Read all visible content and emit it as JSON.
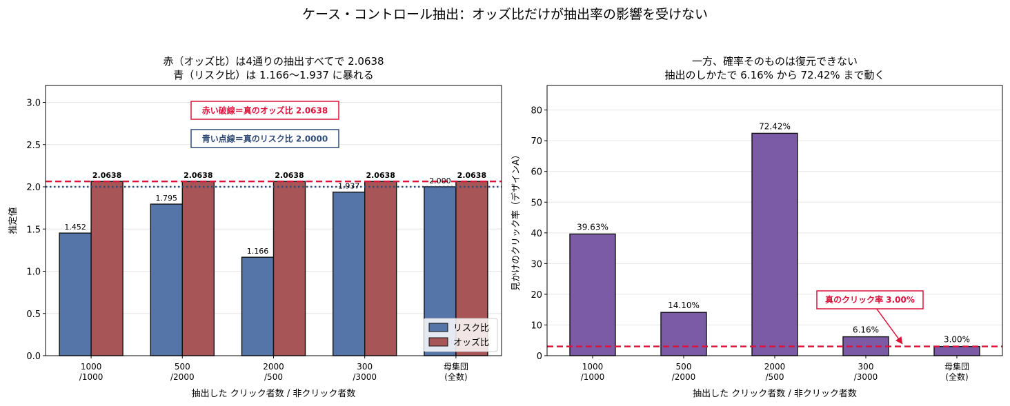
{
  "figure": {
    "suptitle": "ケース・コントロール抽出：オッズ比だけが抽出率の影響を受けない"
  },
  "colors": {
    "risk": "#5575a8",
    "odds": "#a85557",
    "purple": "#7b5aa6",
    "red_line": "#dc143c",
    "blue_line": "#2e4a75"
  },
  "chart_data": [
    {
      "type": "bar",
      "title_lines": [
        "赤（オッズ比）は4通りの抽出すべてで 2.0638",
        "青（リスク比）は 1.166〜1.937 に暴れる"
      ],
      "xlabel": "抽出した クリック者数 / 非クリック者数",
      "ylabel": "推定値",
      "categories": [
        [
          "1000",
          "/1000"
        ],
        [
          "500",
          "/2000"
        ],
        [
          "2000",
          "/500"
        ],
        [
          "300",
          "/3000"
        ],
        [
          "母集団",
          "(全数)"
        ]
      ],
      "series": [
        {
          "name": "リスク比",
          "values": [
            1.452,
            1.795,
            1.166,
            1.937,
            2.0
          ],
          "labels": [
            "1.452",
            "1.795",
            "1.166",
            "1.937",
            "2.000"
          ]
        },
        {
          "name": "オッズ比",
          "values": [
            2.0638,
            2.0638,
            2.0638,
            2.0638,
            2.0638
          ],
          "labels": [
            "2.0638",
            "2.0638",
            "2.0638",
            "2.0638",
            "2.0638"
          ]
        }
      ],
      "ylim": [
        0,
        3.2
      ],
      "yticks": [
        "0.0",
        "0.5",
        "1.0",
        "1.5",
        "2.0",
        "2.5",
        "3.0"
      ],
      "yticks_values": [
        0,
        0.5,
        1.0,
        1.5,
        2.0,
        2.5,
        3.0
      ],
      "ref_lines": [
        {
          "value": 2.0638,
          "style": "dashed",
          "color": "#dc143c"
        },
        {
          "value": 2.0,
          "style": "dotted",
          "color": "#2e4a75"
        }
      ],
      "annotations": [
        "赤い破線＝真のオッズ比 2.0638",
        "青い点線＝真のリスク比 2.0000"
      ],
      "legend_position": "lower-right",
      "grid": "y"
    },
    {
      "type": "bar",
      "title_lines": [
        "一方、確率そのものは復元できない",
        "抽出のしかたで 6.16% から 72.42% まで動く"
      ],
      "xlabel": "抽出した クリック者数 / 非クリック者数",
      "ylabel": "見かけのクリック率（デザインA）",
      "categories": [
        [
          "1000",
          "/1000"
        ],
        [
          "500",
          "/2000"
        ],
        [
          "2000",
          "/500"
        ],
        [
          "300",
          "/3000"
        ],
        [
          "母集団",
          "(全数)"
        ]
      ],
      "values": [
        39.63,
        14.1,
        72.42,
        6.16,
        3.0
      ],
      "labels": [
        "39.63%",
        "14.10%",
        "72.42%",
        "6.16%",
        "3.00%"
      ],
      "ylim": [
        0,
        88
      ],
      "yticks": [
        "0",
        "10",
        "20",
        "30",
        "40",
        "50",
        "60",
        "70",
        "80"
      ],
      "yticks_values": [
        0,
        10,
        20,
        30,
        40,
        50,
        60,
        70,
        80
      ],
      "ref_lines": [
        {
          "value": 3.0,
          "style": "dashed",
          "color": "#dc143c"
        }
      ],
      "annotation": {
        "text": "真のクリック率 3.00%",
        "points_to_category_index": 3.4,
        "points_to_value": 3.0
      },
      "grid": "y"
    }
  ]
}
